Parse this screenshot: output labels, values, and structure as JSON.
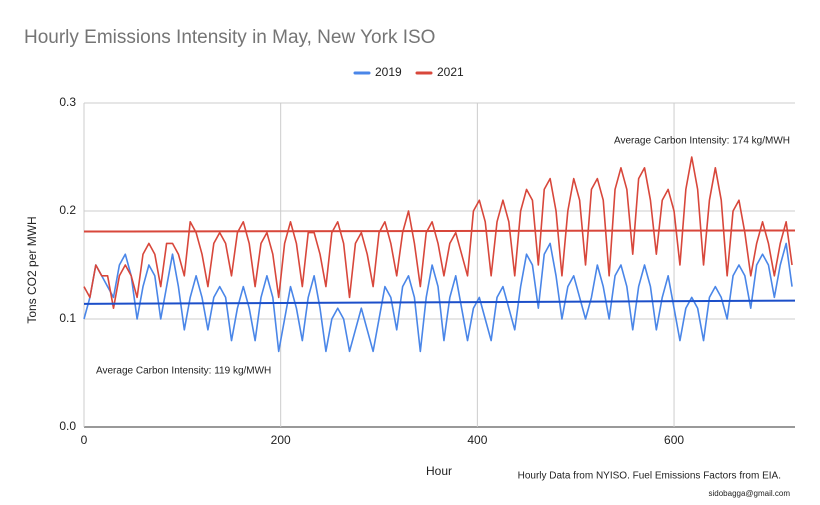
{
  "chart_data": {
    "type": "line",
    "title": "Hourly Emissions Intensity in May, New York ISO",
    "x_label": "Hour",
    "y_label": "Tons CO2 per MWH",
    "source_note": "Hourly Data from NYISO. Fuel Emissions Factors from EIA.",
    "credit": "sidobagga@gmail.com",
    "xlim": [
      0,
      723
    ],
    "ylim": [
      0,
      0.3
    ],
    "xticks": [
      0,
      200,
      400,
      600
    ],
    "yticks": [
      {
        "value": 0,
        "label": "0.0"
      },
      0.1,
      0.2,
      0.3
    ],
    "grid": true,
    "legend": "top",
    "x": [
      0,
      6,
      12,
      18,
      24,
      30,
      36,
      42,
      48,
      54,
      60,
      66,
      72,
      78,
      84,
      90,
      96,
      102,
      108,
      114,
      120,
      126,
      132,
      138,
      144,
      150,
      156,
      162,
      168,
      174,
      180,
      186,
      192,
      198,
      204,
      210,
      216,
      222,
      228,
      234,
      240,
      246,
      252,
      258,
      264,
      270,
      276,
      282,
      288,
      294,
      300,
      306,
      312,
      318,
      324,
      330,
      336,
      342,
      348,
      354,
      360,
      366,
      372,
      378,
      384,
      390,
      396,
      402,
      408,
      414,
      420,
      426,
      432,
      438,
      444,
      450,
      456,
      462,
      468,
      474,
      480,
      486,
      492,
      498,
      504,
      510,
      516,
      522,
      528,
      534,
      540,
      546,
      552,
      558,
      564,
      570,
      576,
      582,
      588,
      594,
      600,
      606,
      612,
      618,
      624,
      630,
      636,
      642,
      648,
      654,
      660,
      666,
      672,
      678,
      684,
      690,
      696,
      702,
      708,
      714,
      720
    ],
    "series": [
      {
        "name": "2019",
        "color": "#4a86e8",
        "values": [
          0.1,
          0.12,
          0.15,
          0.14,
          0.13,
          0.12,
          0.15,
          0.16,
          0.14,
          0.1,
          0.13,
          0.15,
          0.14,
          0.1,
          0.13,
          0.16,
          0.13,
          0.09,
          0.12,
          0.14,
          0.12,
          0.09,
          0.12,
          0.13,
          0.12,
          0.08,
          0.11,
          0.13,
          0.11,
          0.08,
          0.12,
          0.14,
          0.12,
          0.07,
          0.1,
          0.13,
          0.11,
          0.08,
          0.12,
          0.14,
          0.11,
          0.07,
          0.1,
          0.11,
          0.1,
          0.07,
          0.09,
          0.11,
          0.09,
          0.07,
          0.1,
          0.13,
          0.12,
          0.09,
          0.13,
          0.14,
          0.12,
          0.07,
          0.12,
          0.15,
          0.13,
          0.08,
          0.12,
          0.14,
          0.11,
          0.08,
          0.11,
          0.12,
          0.1,
          0.08,
          0.12,
          0.13,
          0.11,
          0.09,
          0.13,
          0.16,
          0.15,
          0.11,
          0.16,
          0.17,
          0.14,
          0.1,
          0.13,
          0.14,
          0.12,
          0.1,
          0.12,
          0.15,
          0.13,
          0.1,
          0.14,
          0.15,
          0.13,
          0.09,
          0.13,
          0.15,
          0.13,
          0.09,
          0.12,
          0.14,
          0.11,
          0.08,
          0.11,
          0.12,
          0.11,
          0.08,
          0.12,
          0.13,
          0.12,
          0.1,
          0.14,
          0.15,
          0.14,
          0.11,
          0.15,
          0.16,
          0.15,
          0.12,
          0.15,
          0.17,
          0.13
        ],
        "trendline": {
          "color": "#1c4fc9",
          "x": [
            0,
            723
          ],
          "values": [
            0.114,
            0.117
          ]
        }
      },
      {
        "name": "2021",
        "color": "#d8473b",
        "values": [
          0.13,
          0.12,
          0.15,
          0.14,
          0.14,
          0.11,
          0.14,
          0.15,
          0.14,
          0.12,
          0.16,
          0.17,
          0.16,
          0.13,
          0.17,
          0.17,
          0.16,
          0.14,
          0.19,
          0.18,
          0.16,
          0.13,
          0.17,
          0.18,
          0.17,
          0.14,
          0.18,
          0.19,
          0.17,
          0.13,
          0.17,
          0.18,
          0.16,
          0.12,
          0.17,
          0.19,
          0.17,
          0.13,
          0.18,
          0.18,
          0.16,
          0.13,
          0.18,
          0.19,
          0.17,
          0.12,
          0.17,
          0.18,
          0.16,
          0.13,
          0.18,
          0.19,
          0.17,
          0.14,
          0.18,
          0.2,
          0.17,
          0.13,
          0.18,
          0.19,
          0.17,
          0.14,
          0.17,
          0.18,
          0.16,
          0.14,
          0.2,
          0.21,
          0.19,
          0.14,
          0.19,
          0.21,
          0.19,
          0.14,
          0.2,
          0.22,
          0.21,
          0.15,
          0.22,
          0.23,
          0.2,
          0.14,
          0.2,
          0.23,
          0.21,
          0.15,
          0.22,
          0.23,
          0.21,
          0.14,
          0.22,
          0.24,
          0.22,
          0.16,
          0.23,
          0.24,
          0.21,
          0.16,
          0.21,
          0.22,
          0.2,
          0.15,
          0.22,
          0.25,
          0.22,
          0.15,
          0.21,
          0.24,
          0.21,
          0.14,
          0.2,
          0.21,
          0.18,
          0.14,
          0.17,
          0.19,
          0.17,
          0.14,
          0.17,
          0.19,
          0.15
        ],
        "trendline": {
          "color": "#d8473b",
          "x": [
            0,
            723
          ],
          "values": [
            0.181,
            0.182
          ]
        }
      }
    ],
    "annotations": [
      {
        "text": "Average Carbon Intensity: 174 kg/MWH",
        "series": 1
      },
      {
        "text": "Average Carbon Intensity: 119 kg/MWH",
        "series": 0
      }
    ]
  }
}
